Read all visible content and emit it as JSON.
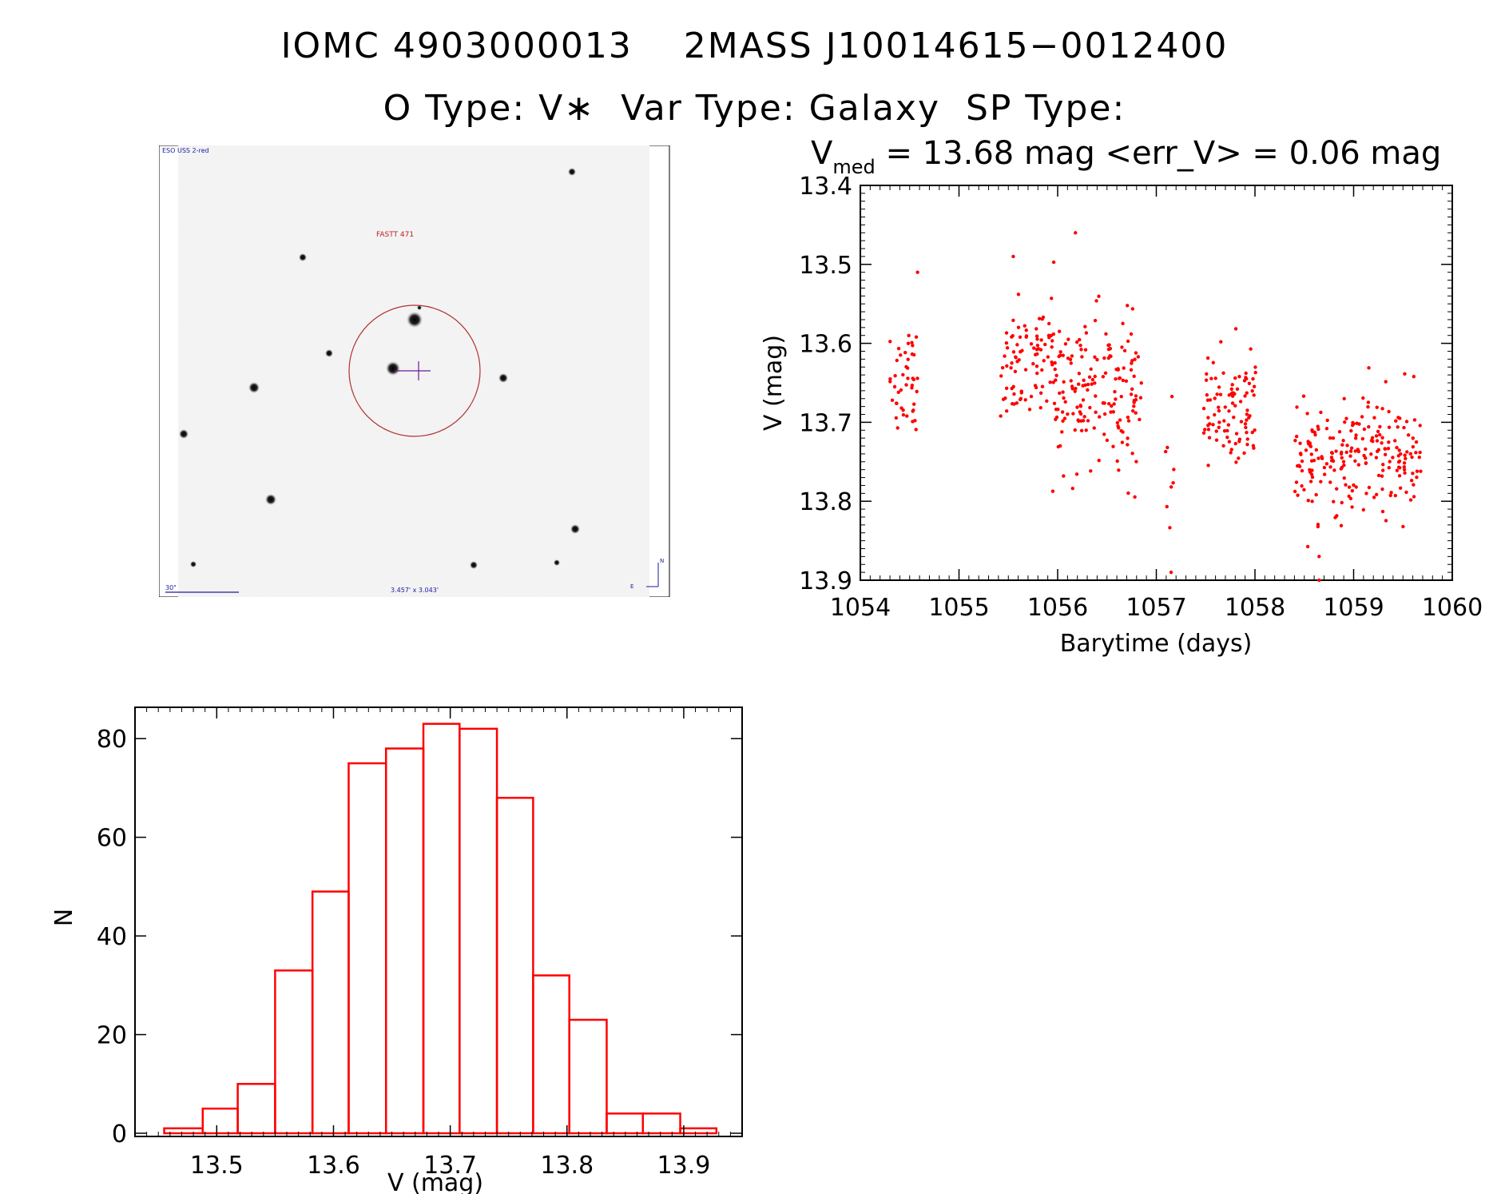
{
  "title_line1": "IOMC 4903000013    2MASS J10014615−0012400",
  "title_line2": "O Type: V∗  Var Type: Galaxy  SP Type:",
  "finder": {
    "survey_label": "ESO USS 2-red",
    "object_label": "FASTT 471",
    "scale_label": "30\"",
    "fov_label": "3.457' x 3.043'",
    "north_label": "N",
    "east_label": "E",
    "colors": {
      "ring": "#b03030",
      "labels_blue": "#1a1aa0",
      "object_label": "#c02020",
      "crosshair": "#6a1a9a"
    }
  },
  "chart_data": [
    {
      "type": "scatter",
      "title_prefix": "V",
      "title_subscript": "med",
      "title_rest": " = 13.68 mag <err_V> = 0.06 mag",
      "xlabel": "Barytime (days)",
      "ylabel": "V (mag)",
      "xlim": [
        1054,
        1060
      ],
      "ylim": [
        13.9,
        13.4
      ],
      "y_inverted": true,
      "x_ticks": [
        1054,
        1055,
        1056,
        1057,
        1058,
        1059,
        1060
      ],
      "y_ticks": [
        13.4,
        13.5,
        13.6,
        13.7,
        13.8,
        13.9
      ],
      "color": "#ff0000",
      "clusters": [
        {
          "x_range": [
            1054.3,
            1054.58
          ],
          "center": 13.66,
          "spread": 0.045,
          "n": 45
        },
        {
          "x_range": [
            1055.42,
            1055.95
          ],
          "center": 13.62,
          "spread": 0.04,
          "n": 85
        },
        {
          "x_range": [
            1055.95,
            1056.85
          ],
          "center": 13.66,
          "spread": 0.055,
          "n": 170
        },
        {
          "x_range": [
            1057.08,
            1057.18
          ],
          "center": 13.77,
          "spread": 0.05,
          "n": 8
        },
        {
          "x_range": [
            1057.48,
            1058.02
          ],
          "center": 13.68,
          "spread": 0.04,
          "n": 95
        },
        {
          "x_range": [
            1058.4,
            1059.68
          ],
          "center": 13.74,
          "spread": 0.045,
          "n": 220
        }
      ],
      "annotated_points": [
        {
          "x": 1056.18,
          "y": 13.46
        },
        {
          "x": 1055.55,
          "y": 13.49
        },
        {
          "x": 1054.58,
          "y": 13.51
        },
        {
          "x": 1057.15,
          "y": 13.89
        },
        {
          "x": 1058.65,
          "y": 13.9
        },
        {
          "x": 1058.65,
          "y": 13.87
        }
      ]
    },
    {
      "type": "bar",
      "xlabel": "V (mag)",
      "ylabel": "N",
      "xlim": [
        13.43,
        13.95
      ],
      "ylim": [
        0,
        87
      ],
      "x_ticks": [
        13.5,
        13.6,
        13.7,
        13.8,
        13.9
      ],
      "y_ticks": [
        0,
        20,
        40,
        60,
        80
      ],
      "bin_edges": [
        13.455,
        13.488,
        13.518,
        13.55,
        13.582,
        13.613,
        13.645,
        13.677,
        13.708,
        13.74,
        13.771,
        13.802,
        13.834,
        13.865,
        13.897,
        13.928
      ],
      "values": [
        1,
        5,
        10,
        33,
        49,
        75,
        78,
        83,
        82,
        68,
        32,
        23,
        4,
        4,
        1
      ],
      "color": "#ff0000"
    }
  ]
}
